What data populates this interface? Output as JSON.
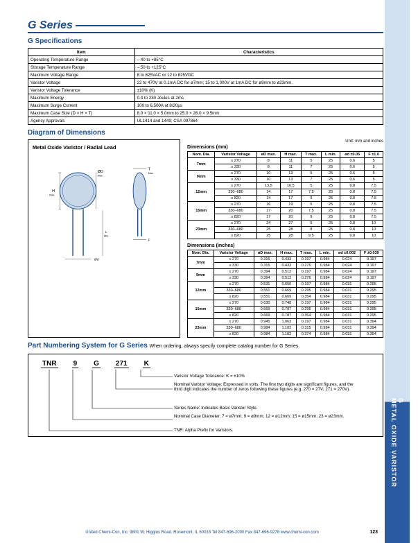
{
  "title": "G Series",
  "sections": {
    "spec_heading": "G Specifications",
    "diagram_heading": "Diagram of Dimensions",
    "pn_heading": "Part Numbering System for G Series",
    "pn_note": "When ordering, always specify complete catalog number for G Series."
  },
  "side_tab": {
    "line1": "G",
    "line2": "METAL OXIDE VARISTOR"
  },
  "spec_table": {
    "headers": [
      "Item",
      "Characteristics"
    ],
    "rows": [
      [
        "Operating Temperature Range",
        "– 40 to +85°C"
      ],
      [
        "Storage Temperature Range",
        "– 50 to +125°C"
      ],
      [
        "Maximum Voltage Range",
        "8 to 625VAC or 12 to 825VDC"
      ],
      [
        "Varistor Voltage",
        "22 to 470V at 0.1mA DC for ø7mm; 15 to 1,000V at 1mA DC for ø9mm to ø23mm."
      ],
      [
        "Varistor Voltage Tolerance",
        "±10% (K)"
      ],
      [
        "Maximum Energy",
        "0.4 to 230 Joules at 2ms"
      ],
      [
        "Maximum Surge Current",
        "100 to 6,500A at 8/20µs"
      ],
      [
        "Maximum Case Size (D × H × T)",
        "8.0 × 11.0 × 5.0mm to 25.0 × 28.0 × 9.5mm"
      ],
      [
        "Agency Approvals",
        "UL1414 and 1449; CSA 097864"
      ]
    ]
  },
  "diagram_title": "Metal Oxide Varistor / Radial Lead",
  "unit_note": "Unit: mm and inches",
  "dim_mm": {
    "caption": "Dimensions (mm)",
    "headers": [
      "Nom. Dia.",
      "Varistor Voltage",
      "øD max.",
      "H max.",
      "T max.",
      "L min.",
      "ød ±0.05",
      "F ±1.0"
    ],
    "groups": [
      {
        "dia": "7mm",
        "rows": [
          [
            "≤ 270",
            "8",
            "11",
            "5",
            "25",
            "0.6",
            "5"
          ],
          [
            "≥ 330",
            "8",
            "11",
            "7",
            "25",
            "0.6",
            "5"
          ]
        ]
      },
      {
        "dia": "9mm",
        "rows": [
          [
            "≤ 270",
            "10",
            "13",
            "5",
            "25",
            "0.6",
            "5"
          ],
          [
            "≥ 330",
            "10",
            "13",
            "7",
            "25",
            "0.6",
            "5"
          ]
        ]
      },
      {
        "dia": "12mm",
        "rows": [
          [
            "≤ 270",
            "13.5",
            "16.5",
            "5",
            "25",
            "0.8",
            "7.5"
          ],
          [
            "330–680",
            "14",
            "17",
            "7.5",
            "25",
            "0.8",
            "7.5"
          ],
          [
            "≥ 820",
            "14",
            "17",
            "9",
            "25",
            "0.8",
            "7.5"
          ]
        ]
      },
      {
        "dia": "15mm",
        "rows": [
          [
            "≤ 270",
            "16",
            "19",
            "5",
            "25",
            "0.8",
            "7.5"
          ],
          [
            "330–680",
            "17",
            "20",
            "7.5",
            "25",
            "0.8",
            "7.5"
          ],
          [
            "≥ 820",
            "17",
            "20",
            "9",
            "25",
            "0.8",
            "7.5"
          ]
        ]
      },
      {
        "dia": "23mm",
        "rows": [
          [
            "≤ 270",
            "24",
            "27",
            "5",
            "25",
            "0.8",
            "10"
          ],
          [
            "330–680",
            "25",
            "28",
            "8",
            "25",
            "0.8",
            "10"
          ],
          [
            "≥ 820",
            "25",
            "28",
            "9.5",
            "25",
            "0.8",
            "10"
          ]
        ]
      }
    ]
  },
  "dim_in": {
    "caption": "Dimensions (inches)",
    "headers": [
      "Nom. Dia.",
      "Varistor Voltage",
      "øD max.",
      "H max.",
      "T max.",
      "L min.",
      "ød ±0.002",
      "F ±0.039"
    ],
    "groups": [
      {
        "dia": "7mm",
        "rows": [
          [
            "≤ 270",
            "0.315",
            "0.433",
            "0.197",
            "0.984",
            "0.024",
            "0.197"
          ],
          [
            "≥ 330",
            "0.315",
            "0.433",
            "0.276",
            "0.984",
            "0.024",
            "0.197"
          ]
        ]
      },
      {
        "dia": "9mm",
        "rows": [
          [
            "≤ 270",
            "0.394",
            "0.512",
            "0.197",
            "0.984",
            "0.024",
            "0.197"
          ],
          [
            "≥ 330",
            "0.394",
            "0.512",
            "0.276",
            "0.984",
            "0.024",
            "0.197"
          ]
        ]
      },
      {
        "dia": "12mm",
        "rows": [
          [
            "≤ 270",
            "0.531",
            "0.650",
            "0.197",
            "0.984",
            "0.031",
            "0.295"
          ],
          [
            "330–680",
            "0.551",
            "0.669",
            "0.295",
            "0.984",
            "0.031",
            "0.295"
          ],
          [
            "≥ 820",
            "0.551",
            "0.669",
            "0.354",
            "0.984",
            "0.031",
            "0.295"
          ]
        ]
      },
      {
        "dia": "15mm",
        "rows": [
          [
            "≤ 270",
            "0.630",
            "0.748",
            "0.197",
            "0.984",
            "0.031",
            "0.295"
          ],
          [
            "330–680",
            "0.669",
            "0.787",
            "0.295",
            "0.984",
            "0.031",
            "0.295"
          ],
          [
            "≥ 820",
            "0.669",
            "0.787",
            "0.354",
            "0.984",
            "0.031",
            "0.295"
          ]
        ]
      },
      {
        "dia": "23mm",
        "rows": [
          [
            "≤ 270",
            "0.945",
            "1.063",
            "0.197",
            "0.984",
            "0.031",
            "0.394"
          ],
          [
            "330–680",
            "0.984",
            "1.102",
            "0.315",
            "0.984",
            "0.031",
            "0.394"
          ],
          [
            "≥ 820",
            "0.984",
            "1.102",
            "0.374",
            "0.984",
            "0.031",
            "0.394"
          ]
        ]
      }
    ]
  },
  "pn": {
    "codes": [
      "TNR",
      "9",
      "G",
      "271",
      "K"
    ],
    "descs": [
      "Varistor Voltage Tolerance: K = ±10%",
      "Nominal Varistor Voltage: Expressed in volts. The first two digits are significant figures, and the third digit indicates the number of zeros following these figures (e.g. 270 = 27V; 271 = 270V).",
      "Series Name: Indicates Basic Varistor Style.",
      "Nominal Case Diameter: 7 = ø7mm; 9 = ø9mm; 12 = ø12mm; 15 = ø15mm; 23 = ø23mm.",
      "TNR: Alpha Prefix for Varistors."
    ]
  },
  "footer": "United Chemi-Con, Inc.  9801 W. Higgins Road, Rosemont, IL 60018  Tel 847-696-2000  Fax 847-696-9278  www.chemi-con.com",
  "page_num": "123",
  "colors": {
    "blue": "#1a4d8f",
    "lightblue": "#d0e0f0",
    "darkblue": "#2a5aa0"
  }
}
